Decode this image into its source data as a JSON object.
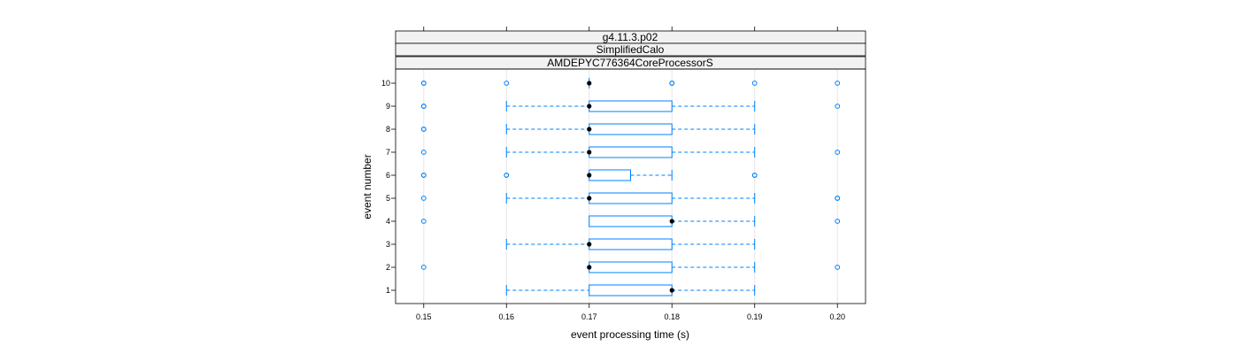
{
  "chart_data": {
    "type": "boxplot",
    "strips": [
      "g4.11.3.p02",
      "SimplifiedCalo",
      "AMDEPYC776364CoreProcessorS"
    ],
    "xlabel": "event processing time (s)",
    "ylabel": "event number",
    "xlim": [
      0.1466,
      0.2034
    ],
    "x_ticks": [
      0.15,
      0.16,
      0.17,
      0.18,
      0.19,
      0.2
    ],
    "x_tick_labels": [
      "0.15",
      "0.16",
      "0.17",
      "0.18",
      "0.19",
      "0.20"
    ],
    "grid": true,
    "colors": {
      "box": "#0080ff",
      "median": "#000000",
      "grid": "#e6e6e6",
      "strip_bg": "#f2f2f2"
    },
    "series": [
      {
        "event": "1",
        "whisker_low": 0.16,
        "q1": 0.17,
        "median": 0.18,
        "q3": 0.18,
        "whisker_high": 0.19,
        "outliers": []
      },
      {
        "event": "2",
        "whisker_low": 0.17,
        "q1": 0.17,
        "median": 0.17,
        "q3": 0.18,
        "whisker_high": 0.19,
        "outliers": [
          0.15,
          0.2
        ]
      },
      {
        "event": "3",
        "whisker_low": 0.16,
        "q1": 0.17,
        "median": 0.17,
        "q3": 0.18,
        "whisker_high": 0.19,
        "outliers": []
      },
      {
        "event": "4",
        "whisker_low": 0.17,
        "q1": 0.17,
        "median": 0.18,
        "q3": 0.18,
        "whisker_high": 0.19,
        "outliers": [
          0.15,
          0.2
        ]
      },
      {
        "event": "5",
        "whisker_low": 0.16,
        "q1": 0.17,
        "median": 0.17,
        "q3": 0.18,
        "whisker_high": 0.19,
        "outliers": [
          0.15,
          0.2,
          0.2
        ]
      },
      {
        "event": "6",
        "whisker_low": 0.17,
        "q1": 0.17,
        "median": 0.17,
        "q3": 0.175,
        "whisker_high": 0.18,
        "outliers": [
          0.15,
          0.15,
          0.16,
          0.16,
          0.19,
          0.19
        ]
      },
      {
        "event": "7",
        "whisker_low": 0.16,
        "q1": 0.17,
        "median": 0.17,
        "q3": 0.18,
        "whisker_high": 0.19,
        "outliers": [
          0.15,
          0.2
        ]
      },
      {
        "event": "8",
        "whisker_low": 0.16,
        "q1": 0.17,
        "median": 0.17,
        "q3": 0.18,
        "whisker_high": 0.19,
        "outliers": [
          0.15,
          0.15
        ]
      },
      {
        "event": "9",
        "whisker_low": 0.16,
        "q1": 0.17,
        "median": 0.17,
        "q3": 0.18,
        "whisker_high": 0.19,
        "outliers": [
          0.15,
          0.15,
          0.2
        ]
      },
      {
        "event": "10",
        "whisker_low": 0.17,
        "q1": 0.17,
        "median": 0.17,
        "q3": 0.17,
        "whisker_high": 0.17,
        "outliers": [
          0.15,
          0.15,
          0.16,
          0.18,
          0.18,
          0.19,
          0.2
        ]
      }
    ]
  }
}
